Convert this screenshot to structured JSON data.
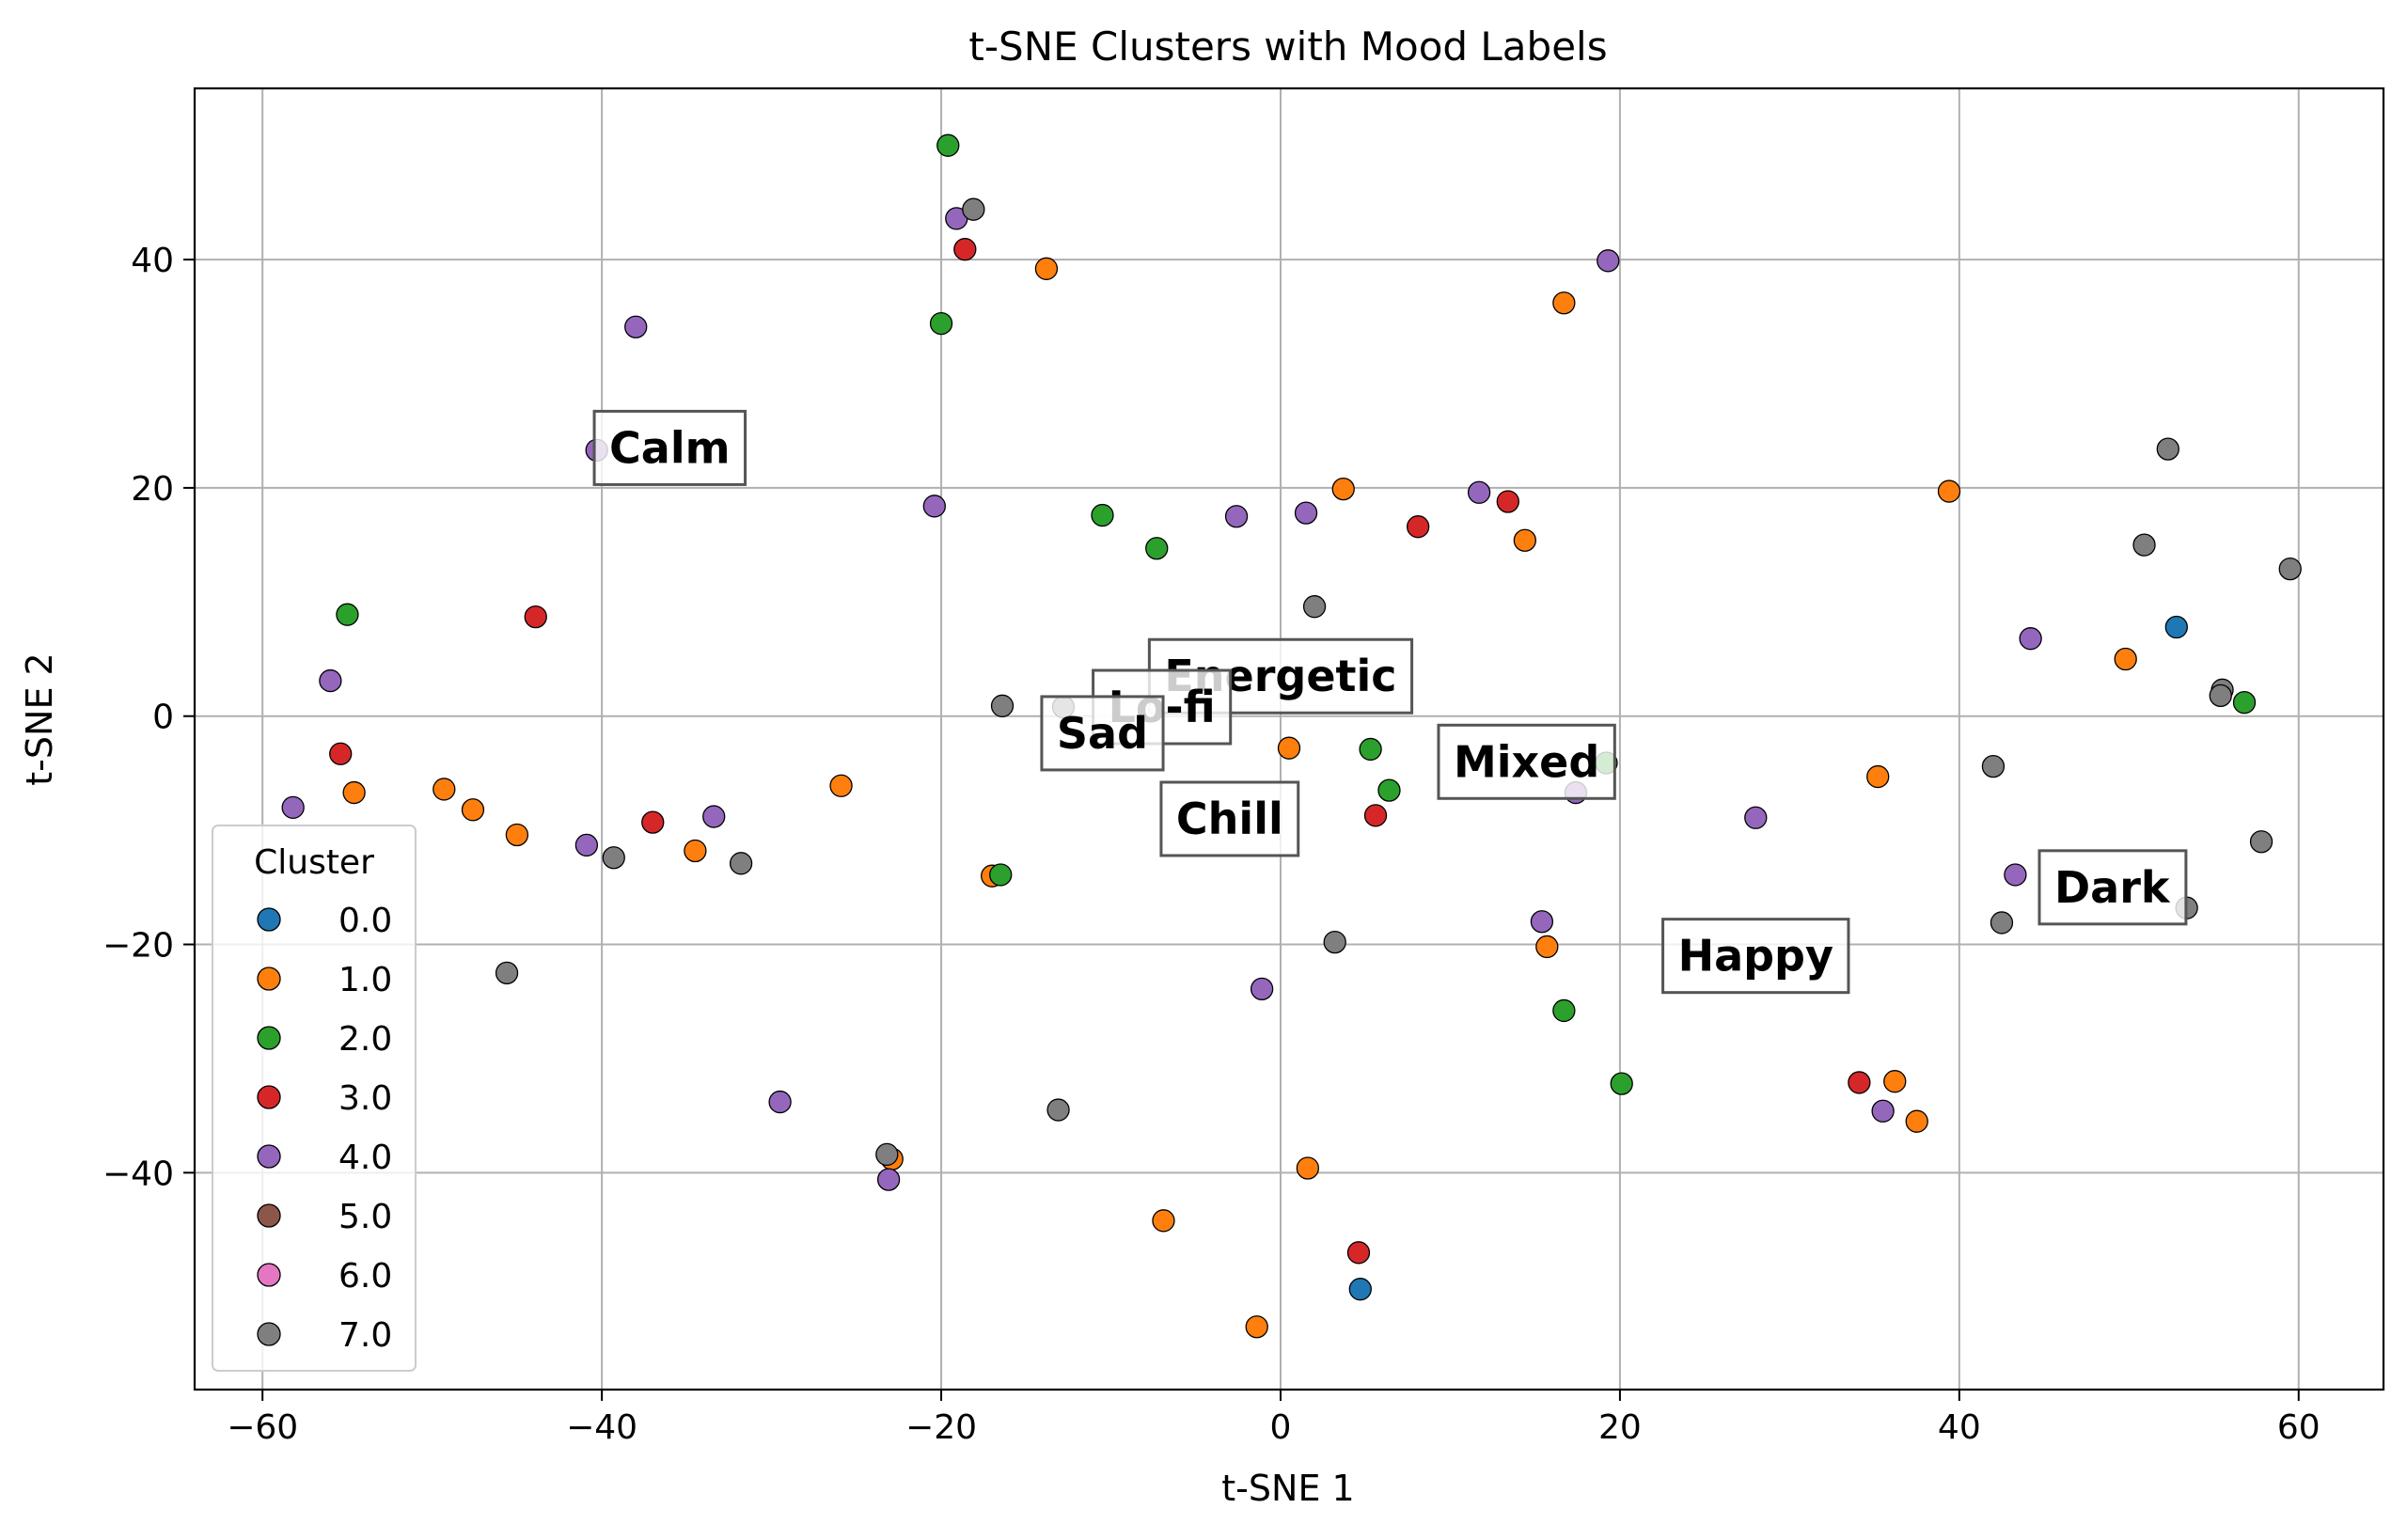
{
  "chart_data": {
    "type": "scatter",
    "title": "t-SNE Clusters with Mood Labels",
    "xlabel": "t-SNE 1",
    "ylabel": "t-SNE 2",
    "xlim": [
      -64,
      65
    ],
    "ylim": [
      -59,
      55
    ],
    "xticks": [
      -60,
      -40,
      -20,
      0,
      20,
      40,
      60
    ],
    "yticks": [
      -40,
      -20,
      0,
      20,
      40
    ],
    "xtick_labels": [
      "−60",
      "−40",
      "−20",
      "0",
      "20",
      "40",
      "60"
    ],
    "ytick_labels": [
      "−40",
      "−20",
      "0",
      "20",
      "40"
    ],
    "grid": true,
    "legend": {
      "title": "Cluster",
      "placement": "lower-left",
      "entries": [
        {
          "label": "0.0",
          "color": "#1f77b4"
        },
        {
          "label": "1.0",
          "color": "#ff7f0e"
        },
        {
          "label": "2.0",
          "color": "#2ca02c"
        },
        {
          "label": "3.0",
          "color": "#d62728"
        },
        {
          "label": "4.0",
          "color": "#9467bd"
        },
        {
          "label": "5.0",
          "color": "#8c564b"
        },
        {
          "label": "6.0",
          "color": "#e377c2"
        },
        {
          "label": "7.0",
          "color": "#7f7f7f"
        }
      ]
    },
    "annotations": [
      {
        "text": "Calm",
        "x": -36,
        "y": 23.5
      },
      {
        "text": "Energetic",
        "x": 0,
        "y": 3.5
      },
      {
        "text": "Lo-fi",
        "x": -7,
        "y": 0.8
      },
      {
        "text": "Sad",
        "x": -10.5,
        "y": -1.5
      },
      {
        "text": "Mixed",
        "x": 14.5,
        "y": -4
      },
      {
        "text": "Chill",
        "x": -3,
        "y": -9
      },
      {
        "text": "Happy",
        "x": 28,
        "y": -21
      },
      {
        "text": "Dark",
        "x": 49,
        "y": -15
      }
    ],
    "series": [
      {
        "cluster": "0.0",
        "color": "#1f77b4",
        "points": [
          [
            52.8,
            7.8
          ],
          [
            4.7,
            -50.2
          ]
        ]
      },
      {
        "cluster": "1.0",
        "color": "#ff7f0e",
        "points": [
          [
            -13.8,
            39.2
          ],
          [
            16.7,
            36.2
          ],
          [
            3.7,
            19.9
          ],
          [
            14.4,
            15.4
          ],
          [
            39.4,
            19.7
          ],
          [
            49.8,
            5.0
          ],
          [
            35.2,
            -5.3
          ],
          [
            0.5,
            -2.8
          ],
          [
            15.7,
            -20.2
          ],
          [
            -54.6,
            -6.7
          ],
          [
            -49.3,
            -6.4
          ],
          [
            -47.6,
            -8.2
          ],
          [
            -45.0,
            -10.4
          ],
          [
            -34.5,
            -11.8
          ],
          [
            -25.9,
            -6.1
          ],
          [
            -17.0,
            -14.0
          ],
          [
            36.2,
            -32.0
          ],
          [
            37.5,
            -35.5
          ],
          [
            1.6,
            -39.6
          ],
          [
            -22.9,
            -38.8
          ],
          [
            -6.9,
            -44.2
          ],
          [
            -1.4,
            -53.5
          ]
        ]
      },
      {
        "cluster": "2.0",
        "color": "#2ca02c",
        "points": [
          [
            -19.6,
            50.0
          ],
          [
            -20.0,
            34.4
          ],
          [
            -10.5,
            17.6
          ],
          [
            -7.3,
            14.7
          ],
          [
            -55.0,
            8.9
          ],
          [
            5.3,
            -2.9
          ],
          [
            6.4,
            -6.5
          ],
          [
            19.2,
            -4.1
          ],
          [
            56.8,
            1.2
          ],
          [
            -16.5,
            -13.9
          ],
          [
            16.7,
            -25.8
          ],
          [
            20.1,
            -32.2
          ]
        ]
      },
      {
        "cluster": "3.0",
        "color": "#d62728",
        "points": [
          [
            -18.6,
            40.9
          ],
          [
            13.4,
            18.8
          ],
          [
            8.1,
            16.6
          ],
          [
            -43.9,
            8.7
          ],
          [
            -55.4,
            -3.3
          ],
          [
            -37.0,
            -9.3
          ],
          [
            5.6,
            -8.7
          ],
          [
            34.1,
            -32.1
          ],
          [
            4.6,
            -47.0
          ]
        ]
      },
      {
        "cluster": "4.0",
        "color": "#9467bd",
        "points": [
          [
            -19.1,
            43.6
          ],
          [
            19.3,
            39.9
          ],
          [
            -38.0,
            34.1
          ],
          [
            -40.3,
            23.3
          ],
          [
            -20.4,
            18.4
          ],
          [
            -2.6,
            17.5
          ],
          [
            1.5,
            17.8
          ],
          [
            11.7,
            19.6
          ],
          [
            44.2,
            6.8
          ],
          [
            -56.0,
            3.1
          ],
          [
            -58.2,
            -8.0
          ],
          [
            -40.9,
            -11.3
          ],
          [
            -33.4,
            -8.8
          ],
          [
            17.4,
            -6.7
          ],
          [
            28.0,
            -8.9
          ],
          [
            15.4,
            -18.0
          ],
          [
            43.3,
            -13.9
          ],
          [
            -1.1,
            -23.9
          ],
          [
            -29.5,
            -33.8
          ],
          [
            -23.1,
            -40.6
          ],
          [
            35.5,
            -34.6
          ]
        ]
      },
      {
        "cluster": "5.0",
        "color": "#8c564b",
        "points": []
      },
      {
        "cluster": "6.0",
        "color": "#e377c2",
        "points": []
      },
      {
        "cluster": "7.0",
        "color": "#7f7f7f",
        "points": [
          [
            -18.1,
            44.4
          ],
          [
            52.3,
            23.4
          ],
          [
            50.9,
            15.0
          ],
          [
            59.5,
            12.9
          ],
          [
            2.0,
            9.6
          ],
          [
            55.5,
            2.3
          ],
          [
            55.4,
            1.8
          ],
          [
            -16.4,
            0.9
          ],
          [
            -12.8,
            0.8
          ],
          [
            42.0,
            -4.4
          ],
          [
            57.8,
            -11.0
          ],
          [
            -39.3,
            -12.4
          ],
          [
            -31.8,
            -12.9
          ],
          [
            42.5,
            -18.1
          ],
          [
            53.4,
            -16.8
          ],
          [
            3.2,
            -19.8
          ],
          [
            -45.6,
            -22.5
          ],
          [
            -13.1,
            -34.5
          ],
          [
            -23.2,
            -38.4
          ]
        ]
      }
    ]
  }
}
